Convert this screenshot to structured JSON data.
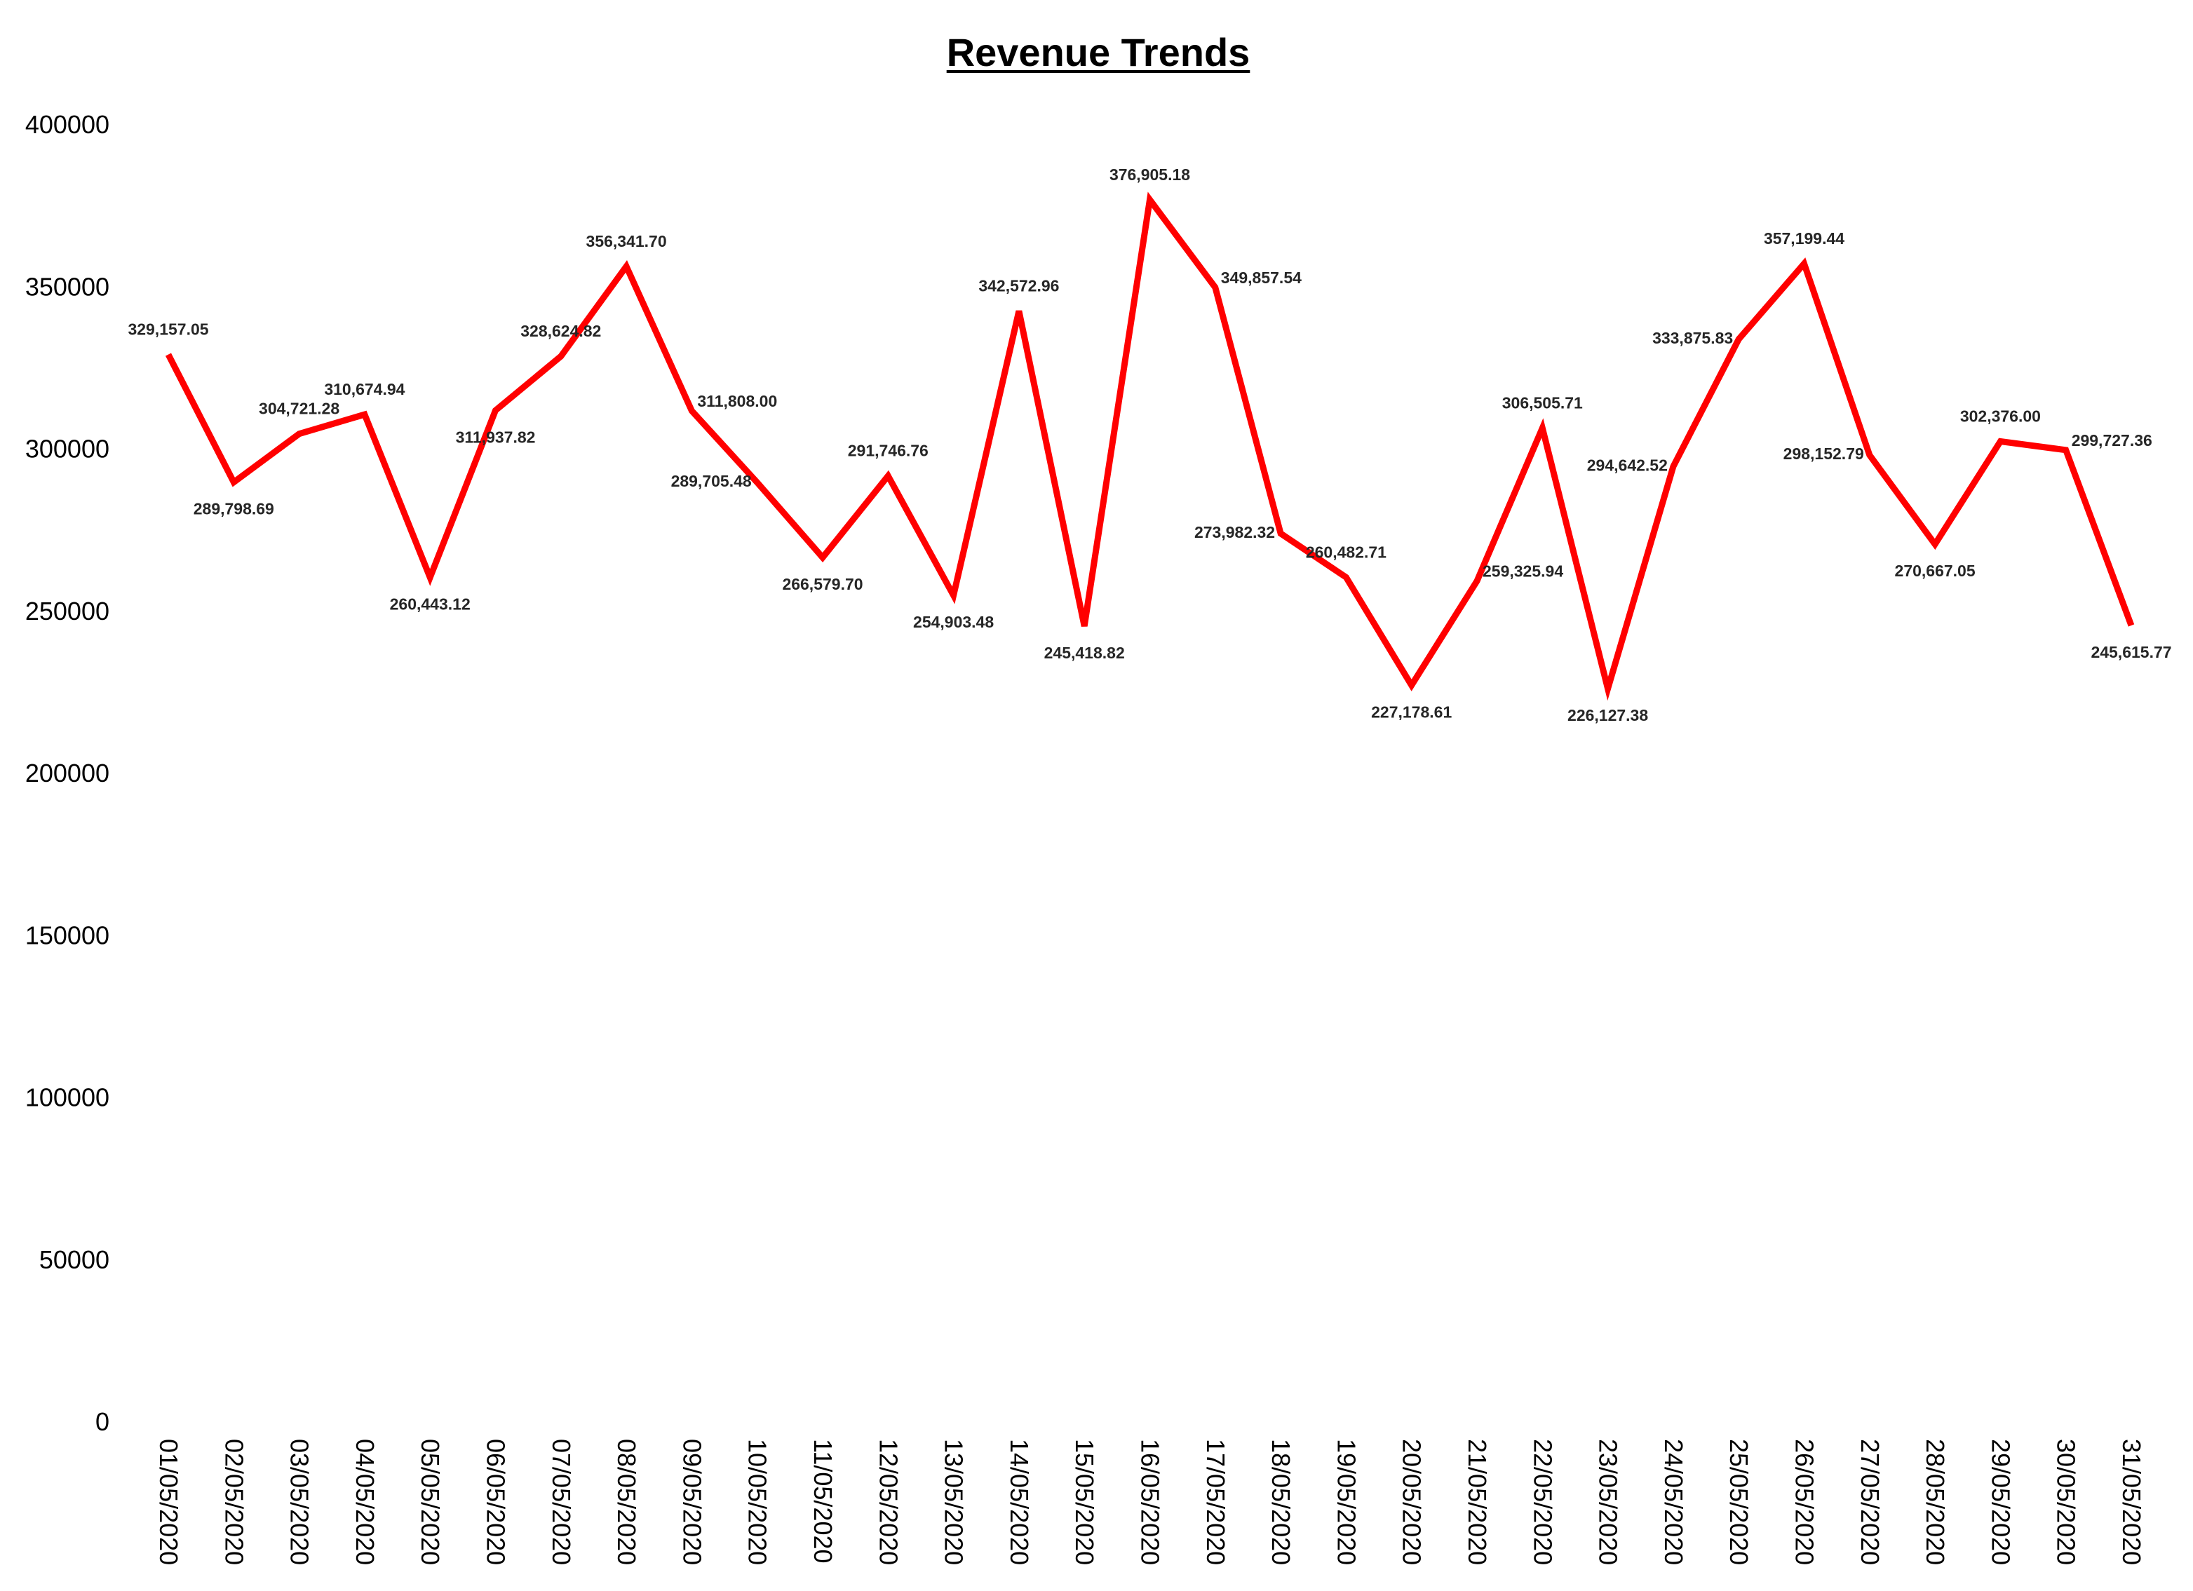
{
  "chart_data": {
    "type": "line",
    "title": "Revenue Trends",
    "xlabel": "",
    "ylabel": "",
    "ylim": [
      0,
      400000
    ],
    "yticks": [
      0,
      50000,
      100000,
      150000,
      200000,
      250000,
      300000,
      350000,
      400000
    ],
    "grid": false,
    "legend": "none",
    "line_color": "#ff0000",
    "categories": [
      "01/05/2020",
      "02/05/2020",
      "03/05/2020",
      "04/05/2020",
      "05/05/2020",
      "06/05/2020",
      "07/05/2020",
      "08/05/2020",
      "09/05/2020",
      "10/05/2020",
      "11/05/2020",
      "12/05/2020",
      "13/05/2020",
      "14/05/2020",
      "15/05/2020",
      "16/05/2020",
      "17/05/2020",
      "18/05/2020",
      "19/05/2020",
      "20/05/2020",
      "21/05/2020",
      "22/05/2020",
      "23/05/2020",
      "24/05/2020",
      "25/05/2020",
      "26/05/2020",
      "27/05/2020",
      "28/05/2020",
      "29/05/2020",
      "30/05/2020",
      "31/05/2020"
    ],
    "values": [
      329157.05,
      289798.69,
      304721.28,
      310674.94,
      260443.12,
      311937.82,
      328624.82,
      356341.7,
      311808.0,
      289705.48,
      266579.7,
      291746.76,
      254903.48,
      342572.96,
      245418.82,
      376905.18,
      349857.54,
      273982.32,
      260482.71,
      227178.61,
      259325.94,
      306505.71,
      226127.38,
      294642.52,
      333875.83,
      357199.44,
      298152.79,
      270667.05,
      302376.0,
      299727.36,
      245615.77
    ],
    "data_labels": [
      "329,157.05",
      "289,798.69",
      "304,721.28",
      "310,674.94",
      "260,443.12",
      "311,937.82",
      "328,624.82",
      "356,341.70",
      "311,808.00",
      "289,705.48",
      "266,579.70",
      "291,746.76",
      "254,903.48",
      "342,572.96",
      "245,418.82",
      "376,905.18",
      "349,857.54",
      "273,982.32",
      "260,482.71",
      "227,178.61",
      "259,325.94",
      "306,505.71",
      "226,127.38",
      "294,642.52",
      "333,875.83",
      "357,199.44",
      "298,152.79",
      "270,667.05",
      "302,376.00",
      "299,727.36",
      "245,615.77"
    ]
  }
}
